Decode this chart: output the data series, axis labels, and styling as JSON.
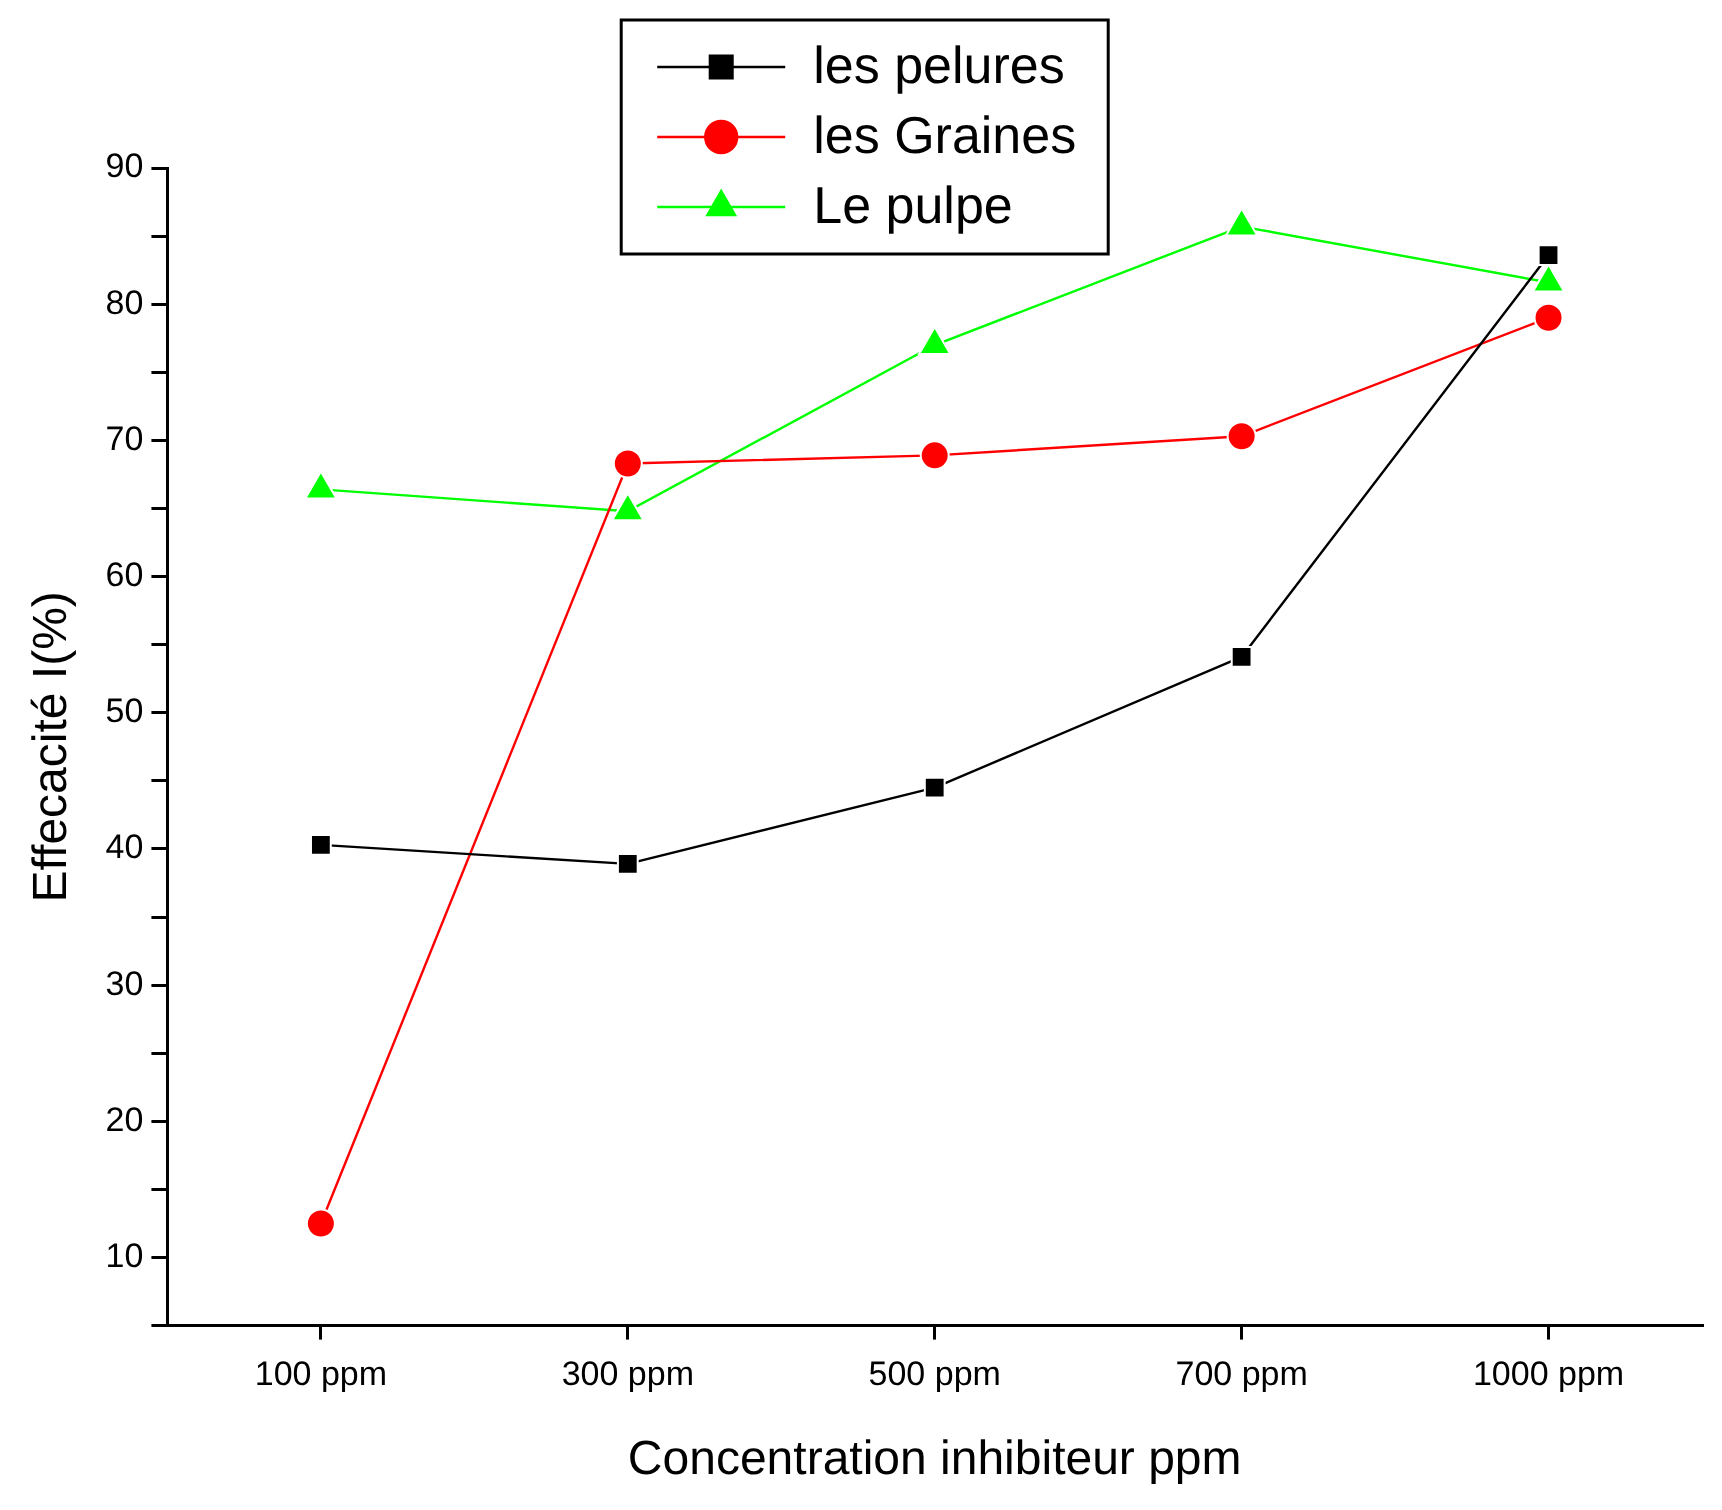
{
  "chart_data": {
    "type": "line",
    "xlabel": "Concentration inhibiteur ppm",
    "ylabel": "Effecacité I(%)",
    "categories": [
      "100 ppm",
      "300 ppm",
      "500 ppm",
      "700 ppm",
      "1000 ppm"
    ],
    "series": [
      {
        "name": "les pelures",
        "color": "#000000",
        "marker": "square",
        "values": [
          40.3,
          38.9,
          44.5,
          54.1,
          83.6
        ]
      },
      {
        "name": "les Graines",
        "color": "#ff0000",
        "marker": "circle",
        "values": [
          12.5,
          68.3,
          68.9,
          70.3,
          79.0
        ]
      },
      {
        "name": "Le pulpe",
        "color": "#00ff00",
        "marker": "triangle",
        "values": [
          66.4,
          64.8,
          77.0,
          85.7,
          81.6
        ]
      }
    ],
    "ylim": [
      5,
      90
    ],
    "yticks": [
      {
        "value": 5,
        "label": null
      },
      10,
      {
        "value": 15,
        "label": null
      },
      20,
      {
        "value": 25,
        "label": null
      },
      30,
      {
        "value": 35,
        "label": null
      },
      40,
      {
        "value": 45,
        "label": null
      },
      50,
      {
        "value": 55,
        "label": null
      },
      60,
      {
        "value": 65,
        "label": null
      },
      70,
      {
        "value": 75,
        "label": null
      },
      80,
      {
        "value": 85,
        "label": null
      },
      90
    ],
    "grid": false,
    "legend": "top",
    "line_style": "solid"
  }
}
